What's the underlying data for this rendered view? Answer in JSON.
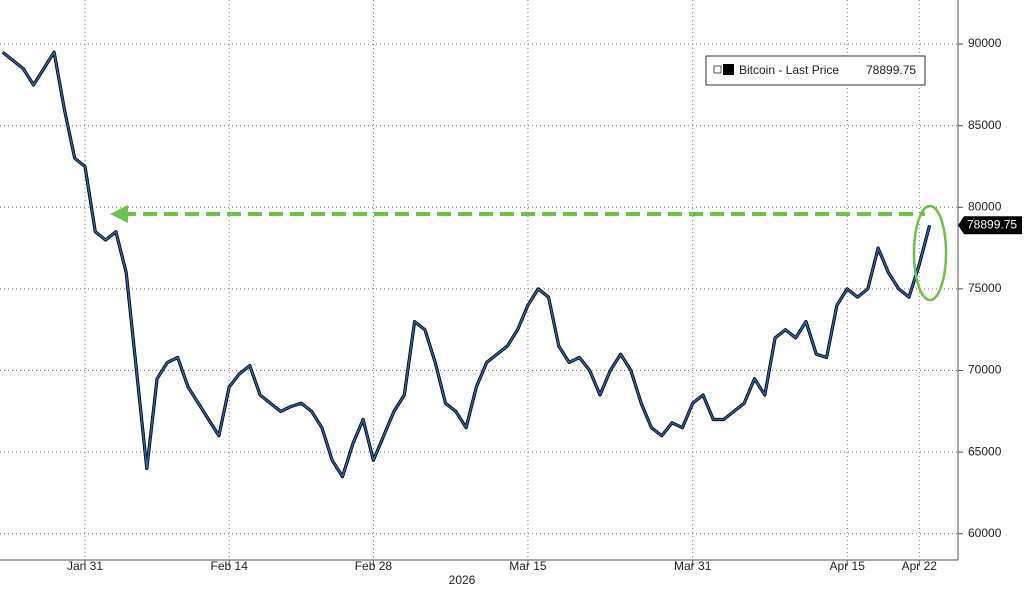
{
  "chart_data": {
    "type": "line",
    "categories": [
      null,
      null,
      null,
      null,
      null,
      null,
      null,
      null,
      "Jan 31",
      null,
      null,
      null,
      null,
      null,
      null,
      null,
      null,
      null,
      null,
      null,
      null,
      null,
      "Feb 14",
      null,
      null,
      null,
      null,
      null,
      null,
      null,
      null,
      null,
      null,
      null,
      null,
      null,
      "Feb 28",
      null,
      null,
      null,
      null,
      null,
      null,
      null,
      null,
      null,
      null,
      null,
      null,
      null,
      null,
      "Mar 15",
      null,
      null,
      null,
      null,
      null,
      null,
      null,
      null,
      null,
      null,
      null,
      null,
      null,
      null,
      null,
      "Mar 31",
      null,
      null,
      null,
      null,
      null,
      null,
      null,
      null,
      null,
      null,
      null,
      null,
      null,
      null,
      "Apr 15",
      null,
      null,
      null,
      null,
      null,
      null,
      "Apr 22",
      null
    ],
    "year_label": "2026",
    "series": [
      {
        "name": "Bitcoin - Last Price",
        "color": "#2b5fa8",
        "values": [
          89500,
          89000,
          88500,
          87500,
          88500,
          89500,
          86000,
          83000,
          82500,
          78500,
          78000,
          78500,
          76000,
          70000,
          64000,
          69500,
          70500,
          70800,
          69000,
          68000,
          67000,
          66000,
          69000,
          69800,
          70300,
          68500,
          68000,
          67500,
          67800,
          68000,
          67500,
          66500,
          64500,
          63500,
          65500,
          67000,
          64500,
          66000,
          67500,
          68500,
          73000,
          72500,
          70500,
          68000,
          67500,
          66500,
          69000,
          70500,
          71000,
          71500,
          72500,
          74000,
          75000,
          74500,
          71500,
          70500,
          70800,
          70000,
          68500,
          70000,
          71000,
          70000,
          68000,
          66500,
          66000,
          66800,
          66500,
          68000,
          68500,
          67000,
          67000,
          67500,
          68000,
          69500,
          68500,
          72000,
          72500,
          72000,
          73000,
          71000,
          70800,
          74000,
          75000,
          74500,
          75000,
          77500,
          76000,
          75000,
          74500,
          76500,
          78899.75
        ]
      }
    ],
    "ylim": [
      58700,
      92700
    ],
    "yticks": [
      60000,
      65000,
      70000,
      75000,
      80000,
      85000,
      90000
    ],
    "grid": true
  }
}
